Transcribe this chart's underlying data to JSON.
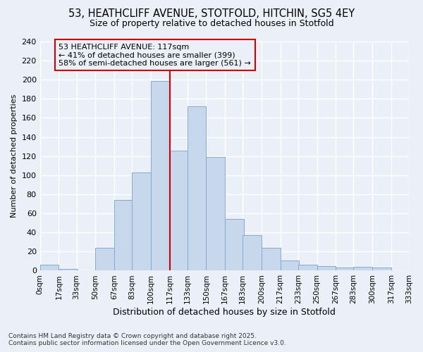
{
  "title1": "53, HEATHCLIFF AVENUE, STOTFOLD, HITCHIN, SG5 4EY",
  "title2": "Size of property relative to detached houses in Stotfold",
  "xlabel": "Distribution of detached houses by size in Stotfold",
  "ylabel": "Number of detached properties",
  "bin_labels": [
    "0sqm",
    "17sqm",
    "33sqm",
    "50sqm",
    "67sqm",
    "83sqm",
    "100sqm",
    "117sqm",
    "133sqm",
    "150sqm",
    "167sqm",
    "183sqm",
    "200sqm",
    "217sqm",
    "233sqm",
    "250sqm",
    "267sqm",
    "283sqm",
    "300sqm",
    "317sqm",
    "333sqm"
  ],
  "bin_edges": [
    0,
    17,
    33,
    50,
    67,
    83,
    100,
    117,
    133,
    150,
    167,
    183,
    200,
    217,
    233,
    250,
    267,
    283,
    300,
    317,
    333
  ],
  "bar_heights": [
    6,
    2,
    0,
    24,
    74,
    103,
    199,
    126,
    172,
    119,
    54,
    37,
    24,
    11,
    6,
    5,
    3,
    4,
    3,
    0,
    0
  ],
  "bar_color": "#c8d8ec",
  "bar_edge_color": "#88aacc",
  "vline_x": 117,
  "vline_color": "#cc0000",
  "annotation_title": "53 HEATHCLIFF AVENUE: 117sqm",
  "annotation_line1": "← 41% of detached houses are smaller (399)",
  "annotation_line2": "58% of semi-detached houses are larger (561) →",
  "annotation_box_color": "#cc0000",
  "bg_color": "#eaeff8",
  "grid_color": "#ffffff",
  "ylim": [
    0,
    240
  ],
  "yticks": [
    0,
    20,
    40,
    60,
    80,
    100,
    120,
    140,
    160,
    180,
    200,
    220,
    240
  ],
  "footer1": "Contains HM Land Registry data © Crown copyright and database right 2025.",
  "footer2": "Contains public sector information licensed under the Open Government Licence v3.0."
}
